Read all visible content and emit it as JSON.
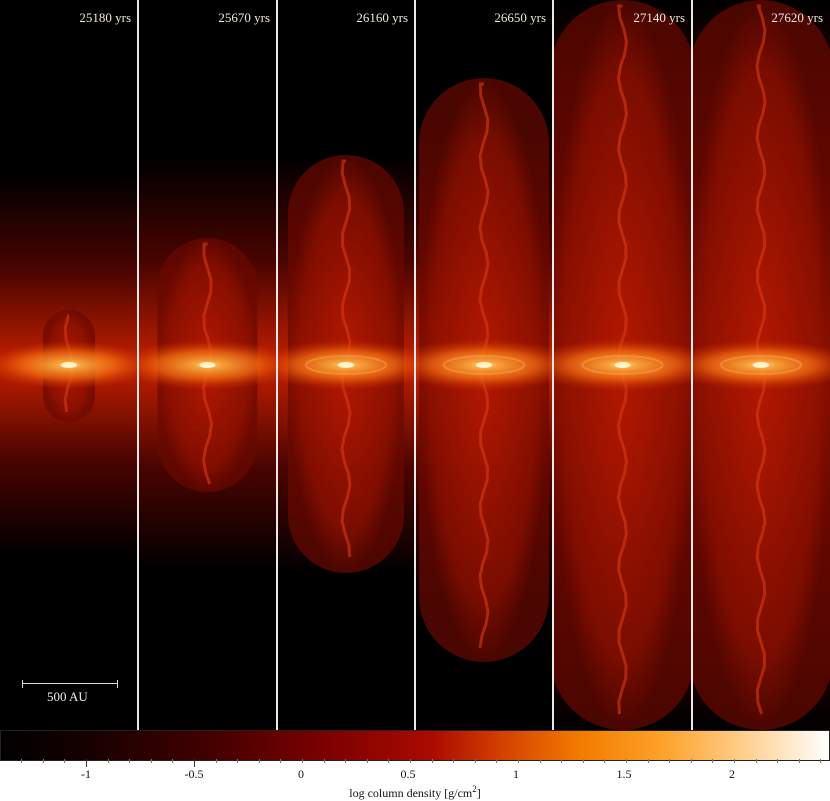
{
  "panels": [
    {
      "time": "25180 yrs"
    },
    {
      "time": "25670 yrs"
    },
    {
      "time": "26160 yrs"
    },
    {
      "time": "26650 yrs"
    },
    {
      "time": "27140 yrs"
    },
    {
      "time": "27620 yrs"
    }
  ],
  "scalebar": {
    "label": "500 AU"
  },
  "colorbar": {
    "label": "log column density [g/cm",
    "label_exp": "2",
    "label_end": "]",
    "ticks": [
      "-1",
      "-0.5",
      "0",
      "0.5",
      "1",
      "1.5",
      "2"
    ]
  },
  "colors": {
    "background": "#000000",
    "separator": "#e9e9e9",
    "core": "#ffb060",
    "mid": "#b01000"
  }
}
